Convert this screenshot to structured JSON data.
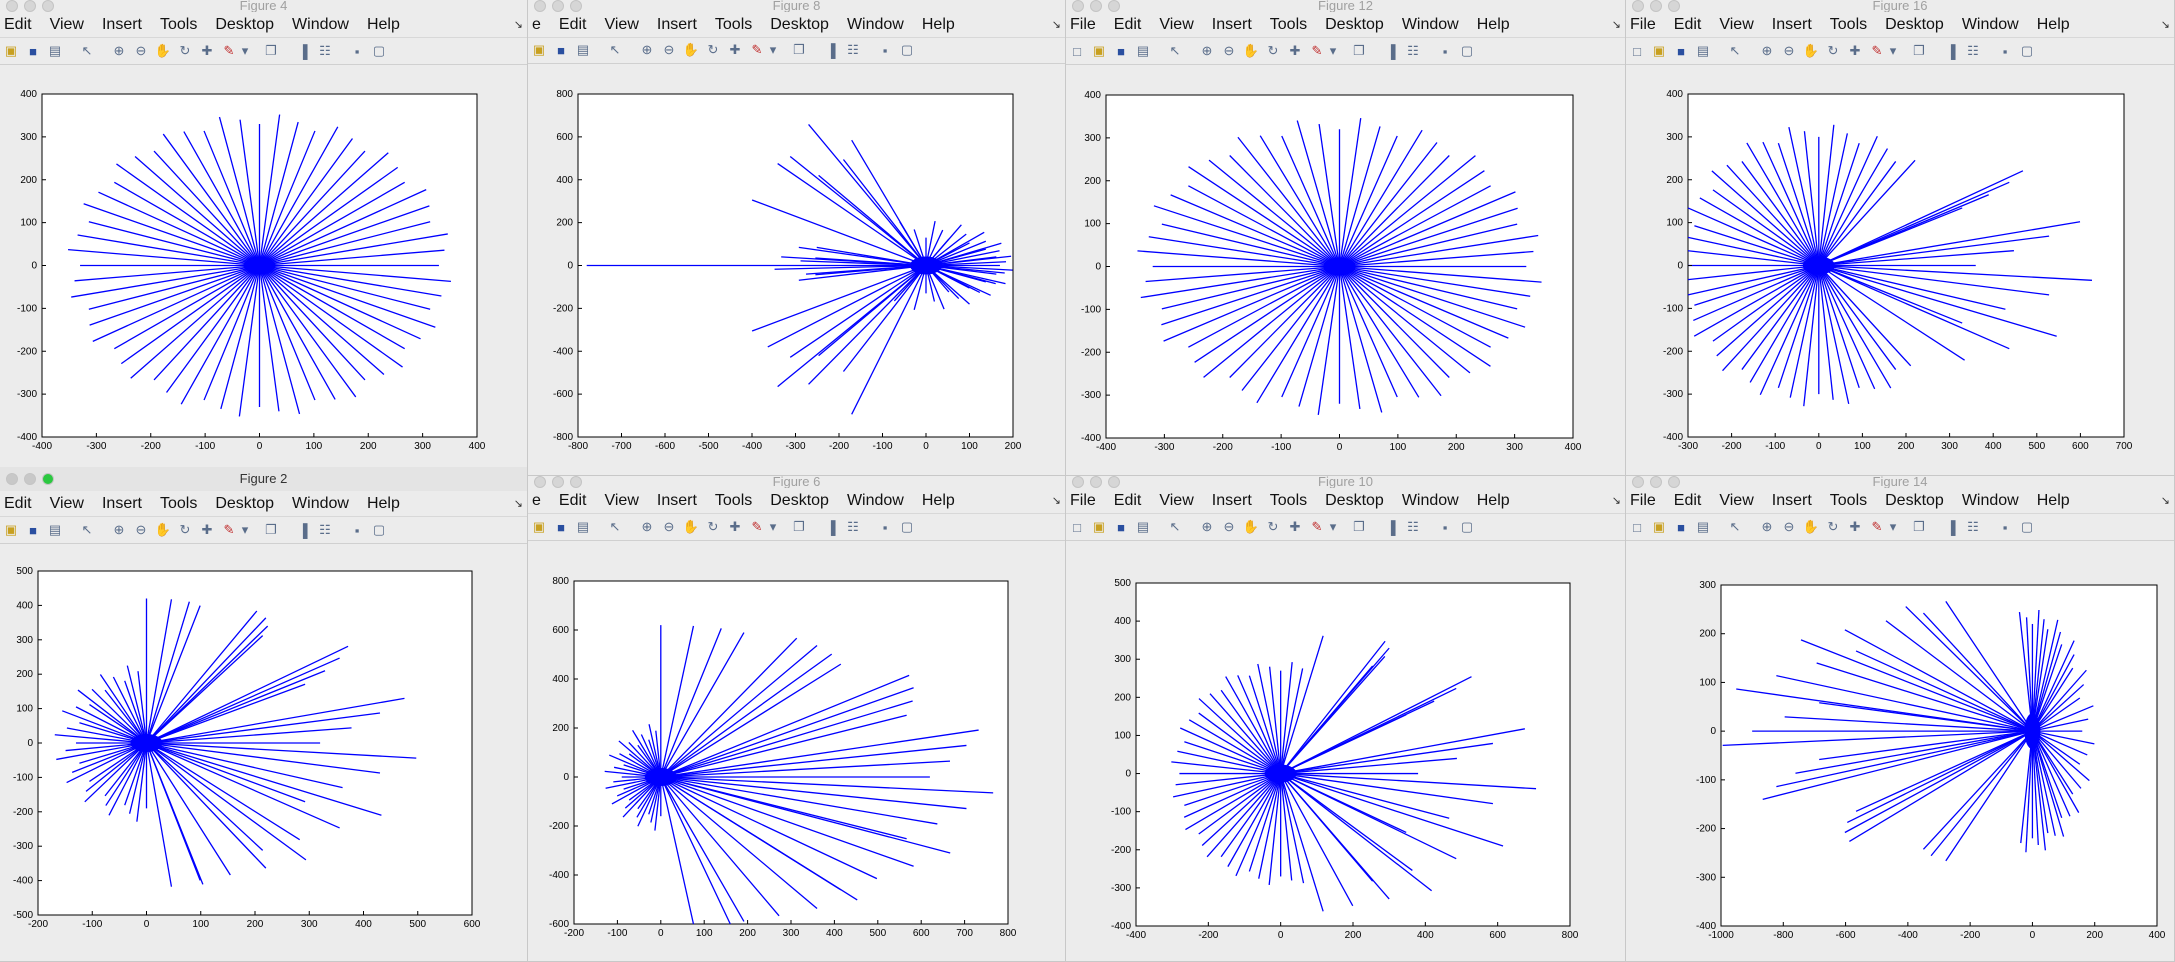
{
  "menu": [
    "File",
    "Edit",
    "View",
    "Insert",
    "Tools",
    "Desktop",
    "Window",
    "Help"
  ],
  "toolbar_icons": [
    "new-figure-icon",
    "open-icon",
    "save-icon",
    "print-icon",
    "pointer-icon",
    "zoom-in-icon",
    "zoom-out-icon",
    "pan-icon",
    "rotate-icon",
    "data-cursor-icon",
    "brush-icon",
    "brush-dropdown-icon",
    "link-icon",
    "colorbar-icon",
    "legend-icon",
    "hide-plot-tools-icon",
    "show-plot-tools-icon"
  ],
  "windows": [
    {
      "title": "Figure 4",
      "active": false,
      "menu_first": "",
      "chart_index": 0
    },
    {
      "title": "Figure 8",
      "active": false,
      "menu_first": "e",
      "chart_index": 1
    },
    {
      "title": "Figure 12",
      "active": false,
      "menu_first": "File",
      "chart_index": 2
    },
    {
      "title": "Figure 16",
      "active": false,
      "menu_first": "File",
      "chart_index": 3
    },
    {
      "title": "Figure 2",
      "active": true,
      "menu_first": "",
      "chart_index": 4
    },
    {
      "title": "Figure 6",
      "active": false,
      "menu_first": "e",
      "chart_index": 5
    },
    {
      "title": "Figure 10",
      "active": false,
      "menu_first": "File",
      "chart_index": 6
    },
    {
      "title": "Figure 14",
      "active": false,
      "menu_first": "File",
      "chart_index": 7
    }
  ],
  "colors": {
    "line": "#0000ff",
    "axes": "#000000",
    "plot_bg": "#ffffff",
    "window_bg": "#ececec"
  },
  "chart_data": [
    {
      "type": "line",
      "title": "",
      "center": [
        0,
        0
      ],
      "n_rays": 60,
      "xlim": [
        -400,
        400
      ],
      "ylim": [
        -400,
        400
      ],
      "xticks": [
        -400,
        -300,
        -200,
        -100,
        0,
        100,
        200,
        300,
        400
      ],
      "yticks": [
        -400,
        -300,
        -200,
        -100,
        0,
        100,
        200,
        300,
        400
      ]
    },
    {
      "type": "line",
      "title": "",
      "center": [
        0,
        0
      ],
      "n_rays": 60,
      "xlim": [
        -800,
        200
      ],
      "ylim": [
        -800,
        800
      ],
      "xticks": [
        -800,
        -700,
        -600,
        -500,
        -400,
        -300,
        -200,
        -100,
        0,
        100,
        200
      ],
      "yticks": [
        -800,
        -600,
        -400,
        -200,
        0,
        200,
        400,
        600,
        800
      ]
    },
    {
      "type": "line",
      "title": "",
      "center": [
        0,
        0
      ],
      "n_rays": 60,
      "xlim": [
        -400,
        400
      ],
      "ylim": [
        -400,
        400
      ],
      "xticks": [
        -400,
        -300,
        -200,
        -100,
        0,
        100,
        200,
        300,
        400
      ],
      "yticks": [
        -400,
        -300,
        -200,
        -100,
        0,
        100,
        200,
        300,
        400
      ]
    },
    {
      "type": "line",
      "title": "",
      "center": [
        0,
        0
      ],
      "n_rays": 60,
      "xlim": [
        -300,
        700
      ],
      "ylim": [
        -400,
        400
      ],
      "xticks": [
        -300,
        -200,
        -100,
        0,
        100,
        200,
        300,
        400,
        500,
        600,
        700
      ],
      "yticks": [
        -400,
        -300,
        -200,
        -100,
        0,
        100,
        200,
        300,
        400
      ]
    },
    {
      "type": "line",
      "title": "",
      "center": [
        0,
        0
      ],
      "n_rays": 60,
      "xlim": [
        -200,
        600
      ],
      "ylim": [
        -500,
        500
      ],
      "xticks": [
        -200,
        -100,
        0,
        100,
        200,
        300,
        400,
        500,
        600
      ],
      "yticks": [
        -500,
        -400,
        -300,
        -200,
        -100,
        0,
        100,
        200,
        300,
        400,
        500
      ]
    },
    {
      "type": "line",
      "title": "",
      "center": [
        0,
        0
      ],
      "n_rays": 60,
      "xlim": [
        -200,
        800
      ],
      "ylim": [
        -600,
        800
      ],
      "xticks": [
        -200,
        -100,
        0,
        100,
        200,
        300,
        400,
        500,
        600,
        700,
        800
      ],
      "yticks": [
        -600,
        -400,
        -200,
        0,
        200,
        400,
        600,
        800
      ]
    },
    {
      "type": "line",
      "title": "",
      "center": [
        0,
        0
      ],
      "n_rays": 60,
      "xlim": [
        -400,
        800
      ],
      "ylim": [
        -400,
        500
      ],
      "xticks": [
        -400,
        -200,
        0,
        200,
        400,
        600,
        800
      ],
      "yticks": [
        -400,
        -300,
        -200,
        -100,
        0,
        100,
        200,
        300,
        400,
        500
      ]
    },
    {
      "type": "line",
      "title": "",
      "center": [
        0,
        0
      ],
      "n_rays": 60,
      "xlim": [
        -1000,
        400
      ],
      "ylim": [
        -400,
        300
      ],
      "xticks": [
        -1000,
        -800,
        -600,
        -400,
        -200,
        0,
        200,
        400
      ],
      "yticks": [
        -400,
        -300,
        -200,
        -100,
        0,
        100,
        200,
        300
      ]
    }
  ]
}
